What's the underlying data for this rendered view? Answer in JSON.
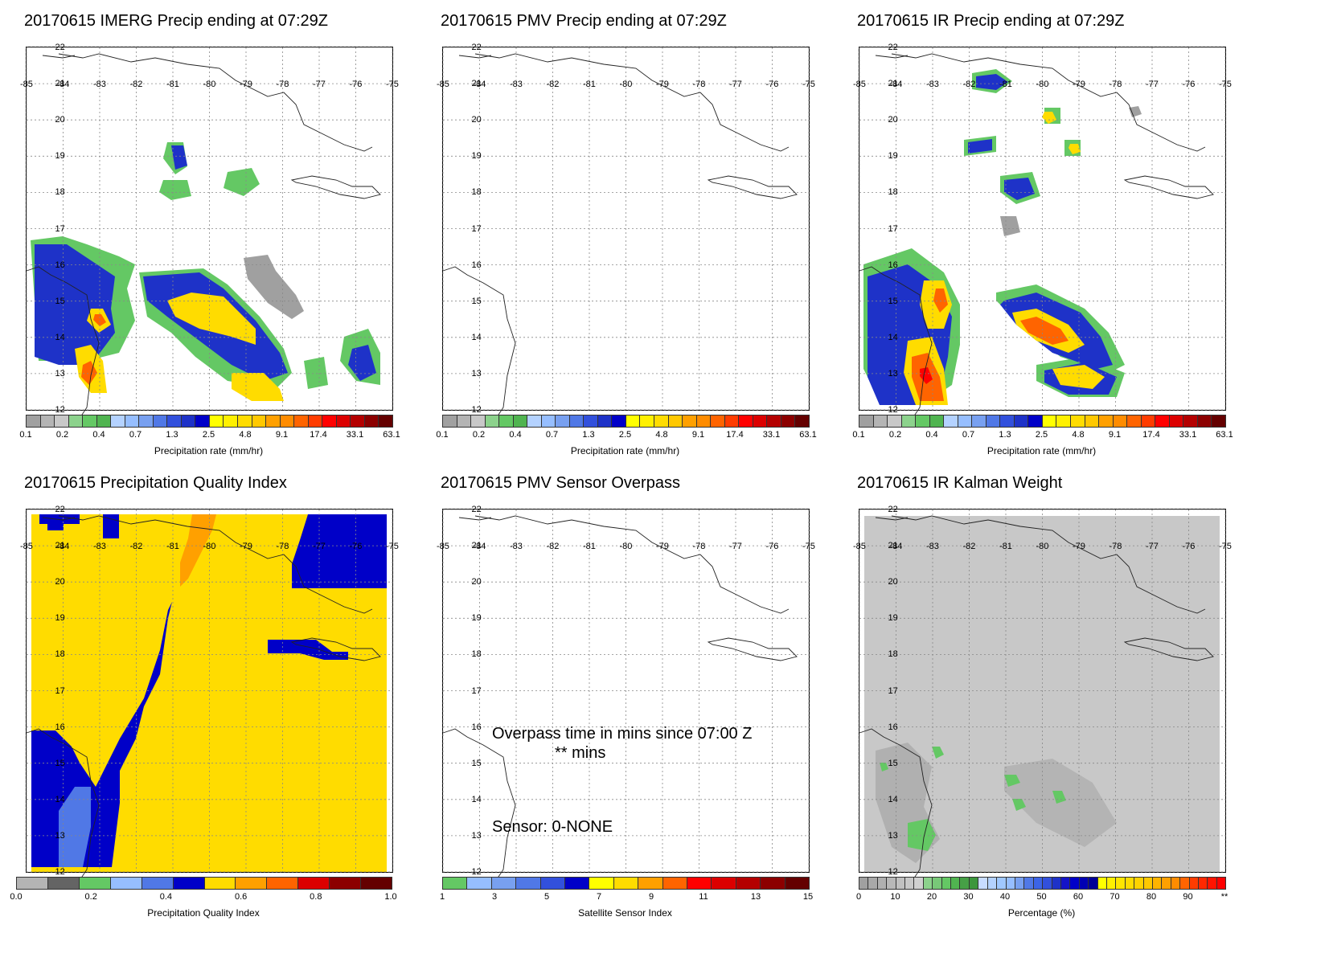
{
  "lon_labels": [
    "-85",
    "-84",
    "-83",
    "-82",
    "-81",
    "-80",
    "-79",
    "-78",
    "-77",
    "-76",
    "-75"
  ],
  "lat_labels": [
    "22",
    "21",
    "20",
    "19",
    "18",
    "17",
    "16",
    "15",
    "14",
    "13",
    "12"
  ],
  "precip_colors": [
    "#a0a0a0",
    "#b4b4b4",
    "#c8c8c8",
    "#8cd28c",
    "#64c864",
    "#50b450",
    "#b4d2ff",
    "#96beff",
    "#78a0f0",
    "#5078e6",
    "#3250dc",
    "#1e32c8",
    "#0000c8",
    "#ffff00",
    "#fff000",
    "#ffdc00",
    "#ffc800",
    "#ffa000",
    "#ff8c00",
    "#ff6400",
    "#ff3c00",
    "#ff0000",
    "#dc0000",
    "#b40000",
    "#8c0000",
    "#640000"
  ],
  "precip_ticks": [
    "0.1",
    "0.2",
    "0.4",
    "0.7",
    "1.3",
    "2.5",
    "4.8",
    "9.1",
    "17.4",
    "33.1",
    "63.1"
  ],
  "precip_axis": "Precipitation rate (mm/hr)",
  "panels": {
    "imerg_title": "20170615 IMERG Precip ending at 07:29Z",
    "pmv_title": "20170615 PMV Precip ending at 07:29Z",
    "ir_title": "20170615 IR Precip ending at 07:29Z",
    "pqi_title": "20170615 Precipitation Quality Index",
    "overpass_title": "20170615 PMV Sensor Overpass",
    "kalman_title": "20170615 IR Kalman Weight"
  },
  "pqi_colorbar": {
    "colors": [
      "#b4b4b4",
      "#646464",
      "#64c864",
      "#96beff",
      "#5078e6",
      "#0000c8",
      "#ffdc00",
      "#ffa000",
      "#ff6400",
      "#dc0000",
      "#8c0000",
      "#640000"
    ],
    "ticks": [
      "0.0",
      "0.2",
      "0.4",
      "0.6",
      "0.8",
      "1.0"
    ],
    "axis": "Precipitation Quality Index"
  },
  "sensor_colorbar": {
    "colors": [
      "#64c864",
      "#96beff",
      "#78a0f0",
      "#5078e6",
      "#3250dc",
      "#0000c8",
      "#ffff00",
      "#ffdc00",
      "#ffa000",
      "#ff6400",
      "#ff0000",
      "#dc0000",
      "#b40000",
      "#8c0000",
      "#640000"
    ],
    "ticks": [
      "1",
      "3",
      "5",
      "7",
      "9",
      "11",
      "13",
      "15"
    ],
    "axis": "Satellite Sensor Index"
  },
  "kalman_colorbar": {
    "colors": [
      "#a0a0a0",
      "#a8a8a8",
      "#b0b0b0",
      "#b8b8b8",
      "#c0c0c0",
      "#c8c8c8",
      "#d0d0d0",
      "#8cd28c",
      "#78c878",
      "#64c864",
      "#50b450",
      "#46a046",
      "#3c963c",
      "#c8dcff",
      "#b4d2ff",
      "#a0c8ff",
      "#96beff",
      "#78a0f0",
      "#5078e6",
      "#3c64e6",
      "#3250dc",
      "#1e32c8",
      "#1414c8",
      "#0000c8",
      "#0000b4",
      "#000096",
      "#ffff00",
      "#fff000",
      "#ffe600",
      "#ffdc00",
      "#ffd200",
      "#ffc800",
      "#ffb400",
      "#ffa000",
      "#ff8c00",
      "#ff6400",
      "#ff3c00",
      "#ff2800",
      "#ff1400",
      "#ff0000"
    ],
    "ticks": [
      "0",
      "10",
      "20",
      "30",
      "40",
      "50",
      "60",
      "70",
      "80",
      "90",
      "**"
    ],
    "axis": "Percentage (%)"
  },
  "overpass_notes": {
    "line1": "Overpass time in mins since 07:00 Z",
    "line2": "** mins",
    "sensor": "Sensor:   0-NONE"
  },
  "chart_data": [
    {
      "type": "heatmap",
      "title": "20170615 IMERG Precip ending at 07:29Z",
      "xlim": [
        -85,
        -75
      ],
      "ylim": [
        12,
        22
      ],
      "colorbar_label": "Precipitation rate (mm/hr)",
      "colorbar_ticks": [
        0.1,
        0.2,
        0.4,
        0.7,
        1.3,
        2.5,
        4.8,
        9.1,
        17.4,
        33.1,
        63.1
      ]
    },
    {
      "type": "heatmap",
      "title": "20170615 PMV Precip ending at 07:29Z",
      "xlim": [
        -85,
        -75
      ],
      "ylim": [
        12,
        22
      ],
      "colorbar_label": "Precipitation rate (mm/hr)",
      "colorbar_ticks": [
        0.1,
        0.2,
        0.4,
        0.7,
        1.3,
        2.5,
        4.8,
        9.1,
        17.4,
        33.1,
        63.1
      ]
    },
    {
      "type": "heatmap",
      "title": "20170615 IR Precip ending at 07:29Z",
      "xlim": [
        -85,
        -75
      ],
      "ylim": [
        12,
        22
      ],
      "colorbar_label": "Precipitation rate (mm/hr)",
      "colorbar_ticks": [
        0.1,
        0.2,
        0.4,
        0.7,
        1.3,
        2.5,
        4.8,
        9.1,
        17.4,
        33.1,
        63.1
      ]
    },
    {
      "type": "heatmap",
      "title": "20170615 Precipitation Quality Index",
      "xlim": [
        -85,
        -75
      ],
      "ylim": [
        12,
        22
      ],
      "colorbar_label": "Precipitation Quality Index",
      "colorbar_ticks": [
        0.0,
        0.2,
        0.4,
        0.6,
        0.8,
        1.0
      ]
    },
    {
      "type": "heatmap",
      "title": "20170615 PMV Sensor Overpass",
      "xlim": [
        -85,
        -75
      ],
      "ylim": [
        12,
        22
      ],
      "colorbar_label": "Satellite Sensor Index",
      "colorbar_ticks": [
        1,
        3,
        5,
        7,
        9,
        11,
        13,
        15
      ]
    },
    {
      "type": "heatmap",
      "title": "20170615 IR Kalman Weight",
      "xlim": [
        -85,
        -75
      ],
      "ylim": [
        12,
        22
      ],
      "colorbar_label": "Percentage (%)",
      "colorbar_ticks": [
        "0",
        "10",
        "20",
        "30",
        "40",
        "50",
        "60",
        "70",
        "80",
        "90",
        "**"
      ]
    }
  ]
}
